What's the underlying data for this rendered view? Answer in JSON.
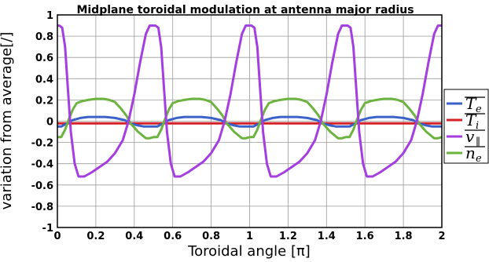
{
  "chart_data": {
    "type": "line",
    "title": "Midplane toroidal modulation at antenna major radius",
    "xlabel": "Toroidal angle [π]",
    "ylabel": "variation from average[/]",
    "xlim": [
      0,
      2
    ],
    "ylim": [
      -1,
      1
    ],
    "xticks": [
      "0",
      "0.2",
      "0.4",
      "0.6",
      "0.8",
      "1",
      "1.2",
      "1.4",
      "1.6",
      "1.8",
      "2"
    ],
    "yticks": [
      "1",
      "0.8",
      "0.6",
      "0.4",
      "0.2",
      "0",
      "-0.2",
      "-0.4",
      "-0.6",
      "-0.8",
      "-1"
    ],
    "grid": true,
    "legend_position": "right",
    "period": 0.5,
    "series": [
      {
        "name": "Te",
        "legend_main": "T",
        "legend_sub": "e",
        "color": "#3a62c8",
        "x": [
          0,
          0.02,
          0.05,
          0.08,
          0.12,
          0.16,
          0.2,
          0.25,
          0.3,
          0.35,
          0.38,
          0.42,
          0.45,
          0.48,
          0.5
        ],
        "y": [
          -0.05,
          -0.05,
          -0.02,
          0.01,
          0.03,
          0.04,
          0.04,
          0.04,
          0.03,
          0.01,
          -0.02,
          -0.04,
          -0.05,
          -0.05,
          -0.05
        ]
      },
      {
        "name": "Ti",
        "legend_main": "T",
        "legend_sub": "i",
        "color": "#d42027",
        "x": [
          0,
          0.1,
          0.2,
          0.3,
          0.4,
          0.5
        ],
        "y": [
          -0.02,
          -0.02,
          -0.02,
          -0.02,
          -0.02,
          -0.02
        ]
      },
      {
        "name": "v∥",
        "legend_main": "v",
        "legend_sub": "∥",
        "color": "#a43ee0",
        "x": [
          0,
          0.01,
          0.025,
          0.04,
          0.055,
          0.07,
          0.09,
          0.11,
          0.14,
          0.18,
          0.22,
          0.26,
          0.3,
          0.34,
          0.37,
          0.4,
          0.43,
          0.46,
          0.48,
          0.5
        ],
        "y": [
          0.9,
          0.9,
          0.88,
          0.7,
          0.3,
          -0.1,
          -0.4,
          -0.52,
          -0.52,
          -0.48,
          -0.43,
          -0.38,
          -0.3,
          -0.18,
          0.0,
          0.25,
          0.55,
          0.82,
          0.9,
          0.9
        ]
      },
      {
        "name": "ne",
        "legend_main": "n",
        "legend_sub": "e",
        "color": "#6db33f",
        "x": [
          0,
          0.02,
          0.04,
          0.06,
          0.08,
          0.1,
          0.13,
          0.16,
          0.2,
          0.24,
          0.27,
          0.3,
          0.33,
          0.36,
          0.38,
          0.4,
          0.42,
          0.44,
          0.46,
          0.48,
          0.5
        ],
        "y": [
          -0.15,
          -0.15,
          -0.08,
          0.02,
          0.11,
          0.17,
          0.19,
          0.2,
          0.21,
          0.21,
          0.2,
          0.18,
          0.12,
          0.05,
          -0.02,
          -0.06,
          -0.1,
          -0.13,
          -0.16,
          -0.16,
          -0.15
        ]
      }
    ]
  }
}
